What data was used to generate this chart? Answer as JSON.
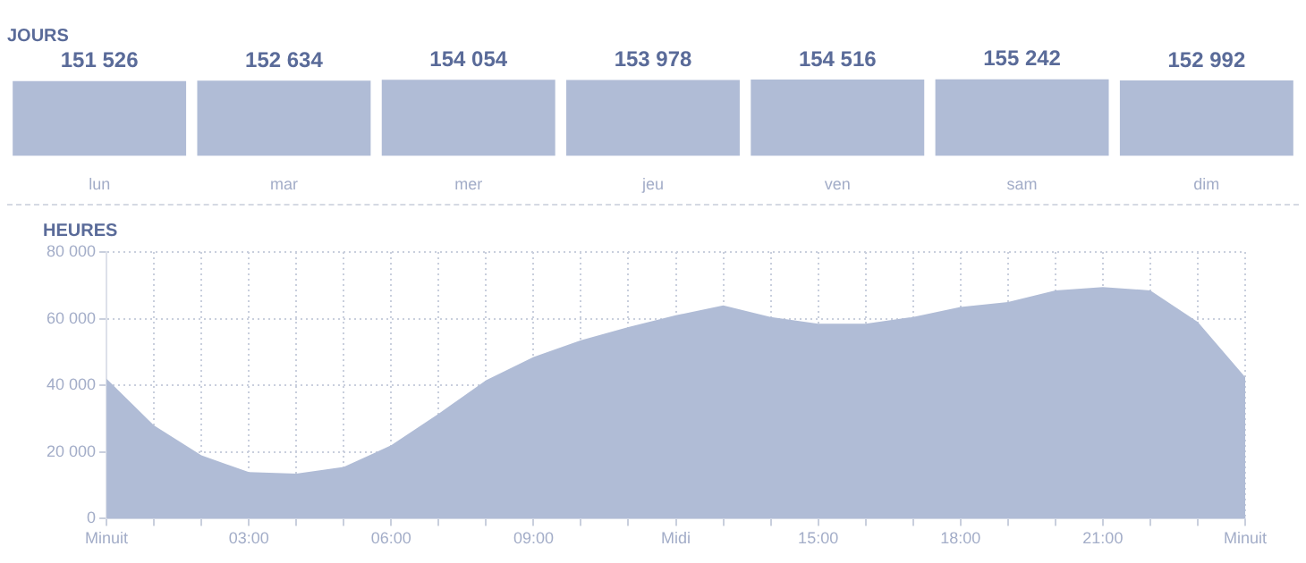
{
  "chart_data": [
    {
      "type": "bar",
      "title": "JOURS",
      "categories": [
        "lun",
        "mar",
        "mer",
        "jeu",
        "ven",
        "sam",
        "dim"
      ],
      "values": [
        151526,
        152634,
        154054,
        153978,
        154516,
        155242,
        152992
      ],
      "value_labels": [
        "151 526",
        "152 634",
        "154 054",
        "153 978",
        "154 516",
        "155 242",
        "152 992"
      ],
      "color": "#b0bcd6"
    },
    {
      "type": "area",
      "title": "HEURES",
      "x": [
        0,
        1,
        2,
        3,
        4,
        5,
        6,
        7,
        8,
        9,
        10,
        11,
        12,
        13,
        14,
        15,
        16,
        17,
        18,
        19,
        20,
        21,
        22,
        23,
        24
      ],
      "values": [
        42000,
        28000,
        19000,
        14000,
        13500,
        15500,
        22000,
        31500,
        41500,
        48500,
        53500,
        57500,
        61000,
        64000,
        60500,
        58500,
        58500,
        60500,
        63500,
        65000,
        68500,
        69500,
        68500,
        59000,
        42500
      ],
      "color": "#b0bcd6",
      "xlim": [
        0,
        24
      ],
      "xticks": [
        {
          "value": 0,
          "label": "Minuit"
        },
        {
          "value": 1,
          "label": null
        },
        {
          "value": 2,
          "label": null
        },
        {
          "value": 3,
          "label": "03:00"
        },
        {
          "value": 4,
          "label": null
        },
        {
          "value": 5,
          "label": null
        },
        {
          "value": 6,
          "label": "06:00"
        },
        {
          "value": 7,
          "label": null
        },
        {
          "value": 8,
          "label": null
        },
        {
          "value": 9,
          "label": "09:00"
        },
        {
          "value": 10,
          "label": null
        },
        {
          "value": 11,
          "label": null
        },
        {
          "value": 12,
          "label": "Midi"
        },
        {
          "value": 13,
          "label": null
        },
        {
          "value": 14,
          "label": null
        },
        {
          "value": 15,
          "label": "15:00"
        },
        {
          "value": 16,
          "label": null
        },
        {
          "value": 17,
          "label": null
        },
        {
          "value": 18,
          "label": "18:00"
        },
        {
          "value": 19,
          "label": null
        },
        {
          "value": 20,
          "label": null
        },
        {
          "value": 21,
          "label": "21:00"
        },
        {
          "value": 22,
          "label": null
        },
        {
          "value": 23,
          "label": null
        },
        {
          "value": 24,
          "label": "Minuit"
        }
      ],
      "ylim": [
        0,
        80000
      ],
      "yticks": [
        {
          "value": 0,
          "label": "0"
        },
        {
          "value": 20000,
          "label": "20 000"
        },
        {
          "value": 40000,
          "label": "40 000"
        },
        {
          "value": 60000,
          "label": "60 000"
        },
        {
          "value": 80000,
          "label": "80 000"
        }
      ],
      "grid": true
    }
  ]
}
